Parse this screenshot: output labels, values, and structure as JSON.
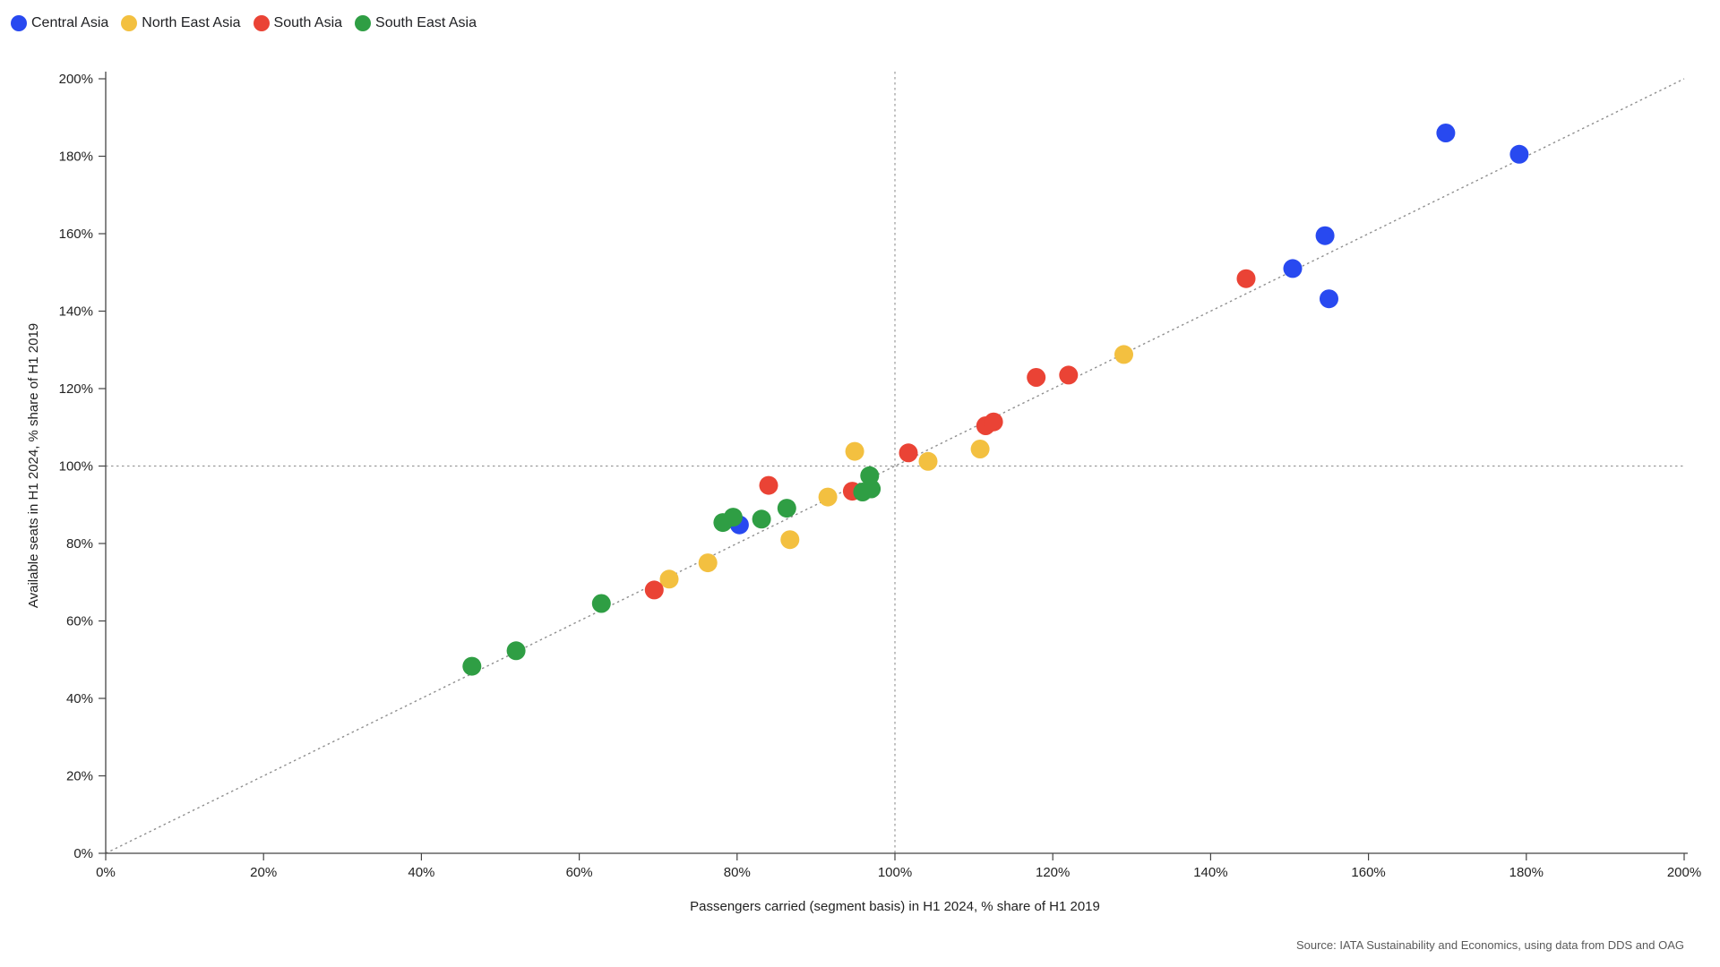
{
  "legend": {
    "items": [
      {
        "label": "Central Asia",
        "color": "#2849f0"
      },
      {
        "label": "North East Asia",
        "color": "#f3c040"
      },
      {
        "label": "South Asia",
        "color": "#ea4335"
      },
      {
        "label": "South East Asia",
        "color": "#2f9e44"
      }
    ]
  },
  "source_text": "Source: IATA Sustainability and Economics, using data from DDS and OAG",
  "chart_data": {
    "type": "scatter",
    "xlabel": "Passengers carried (segment basis) in H1 2024, % share of H1 2019",
    "ylabel": "Available seats in H1 2024, % share of H1 2019",
    "xlim": [
      0,
      200
    ],
    "ylim": [
      0,
      200
    ],
    "x_tick_labels": [
      "0%",
      "20%",
      "40%",
      "60%",
      "80%",
      "100%",
      "120%",
      "140%",
      "160%",
      "180%",
      "200%"
    ],
    "y_tick_labels": [
      "0%",
      "20%",
      "40%",
      "60%",
      "80%",
      "100%",
      "120%",
      "140%",
      "160%",
      "180%",
      "200%"
    ],
    "grid": false,
    "reference_lines": {
      "diagonal": "y = x (dotted)",
      "vertical_at_x": 100,
      "horizontal_at_y": 100
    },
    "legend_position": "top-left",
    "series": [
      {
        "name": "Central Asia",
        "color": "#2849f0",
        "points": [
          [
            80.3,
            84.8
          ],
          [
            150.4,
            151.0
          ],
          [
            154.5,
            159.5
          ],
          [
            155.0,
            143.2
          ],
          [
            169.8,
            186.0
          ],
          [
            179.1,
            180.5
          ]
        ]
      },
      {
        "name": "North East Asia",
        "color": "#f3c040",
        "points": [
          [
            71.4,
            70.8
          ],
          [
            76.3,
            75.0
          ],
          [
            86.7,
            81.0
          ],
          [
            91.5,
            92.0
          ],
          [
            94.9,
            103.8
          ],
          [
            104.2,
            101.2
          ],
          [
            110.8,
            104.4
          ],
          [
            129.0,
            128.8
          ]
        ]
      },
      {
        "name": "South Asia",
        "color": "#ea4335",
        "points": [
          [
            69.5,
            68.0
          ],
          [
            84.0,
            95.0
          ],
          [
            94.6,
            93.5
          ],
          [
            101.7,
            103.4
          ],
          [
            111.5,
            110.4
          ],
          [
            112.5,
            111.4
          ],
          [
            117.9,
            122.9
          ],
          [
            122.0,
            123.5
          ],
          [
            144.5,
            148.4
          ]
        ]
      },
      {
        "name": "South East Asia",
        "color": "#2f9e44",
        "points": [
          [
            46.4,
            48.3
          ],
          [
            52.0,
            52.3
          ],
          [
            62.8,
            64.5
          ],
          [
            78.2,
            85.4
          ],
          [
            79.5,
            86.8
          ],
          [
            83.1,
            86.3
          ],
          [
            86.3,
            89.1
          ],
          [
            95.9,
            93.3
          ],
          [
            97.0,
            94.1
          ],
          [
            96.8,
            97.5
          ]
        ]
      }
    ]
  }
}
